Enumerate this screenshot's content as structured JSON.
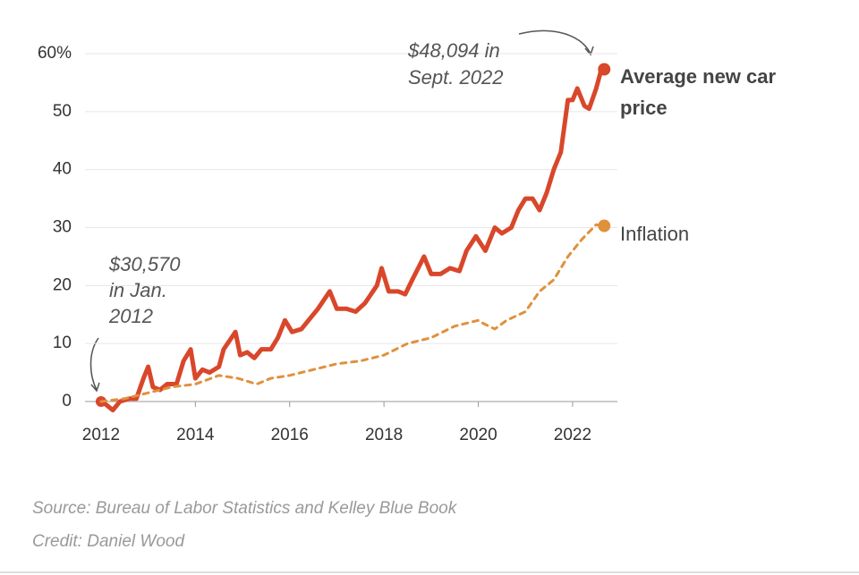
{
  "chart_data": {
    "type": "line",
    "xlim": [
      2011.66,
      2022.95
    ],
    "ylim": [
      0,
      60
    ],
    "xticks": [
      2012,
      2014,
      2016,
      2018,
      2020,
      2022
    ],
    "yticks": [
      0,
      10,
      20,
      30,
      40,
      50,
      {
        "value": 60,
        "label": "60%"
      }
    ],
    "grid": true,
    "series": [
      {
        "name": "Average new car price",
        "color": "#d9472b",
        "x": [
          2012.0,
          2012.1,
          2012.25,
          2012.4,
          2012.6,
          2012.75,
          2012.9,
          2013.0,
          2013.1,
          2013.25,
          2013.4,
          2013.6,
          2013.75,
          2013.9,
          2014.0,
          2014.15,
          2014.3,
          2014.5,
          2014.6,
          2014.85,
          2014.95,
          2015.1,
          2015.25,
          2015.4,
          2015.6,
          2015.75,
          2015.9,
          2016.05,
          2016.25,
          2016.4,
          2016.6,
          2016.85,
          2017.0,
          2017.2,
          2017.4,
          2017.6,
          2017.85,
          2017.95,
          2018.1,
          2018.3,
          2018.45,
          2018.6,
          2018.85,
          2019.0,
          2019.2,
          2019.4,
          2019.6,
          2019.75,
          2019.95,
          2020.15,
          2020.35,
          2020.5,
          2020.7,
          2020.85,
          2021.0,
          2021.15,
          2021.3,
          2021.45,
          2021.6,
          2021.75,
          2021.9,
          2022.0,
          2022.1,
          2022.25,
          2022.35,
          2022.5,
          2022.6,
          2022.67
        ],
        "values": [
          0,
          -0.5,
          -1.5,
          0,
          0.5,
          0.5,
          4,
          6,
          2.5,
          2,
          3,
          3,
          7,
          9,
          4,
          5.5,
          5,
          6,
          9,
          12,
          8,
          8.5,
          7.5,
          9,
          9,
          11,
          14,
          12,
          12.5,
          14,
          16,
          19,
          16,
          16,
          15.5,
          17,
          20,
          23,
          19,
          19,
          18.5,
          21,
          25,
          22,
          22,
          23,
          22.5,
          26,
          28.5,
          26,
          30,
          29,
          30,
          33,
          35,
          35,
          33,
          36,
          40,
          43,
          52,
          52,
          54,
          51,
          50.5,
          54,
          57,
          57.3
        ]
      },
      {
        "name": "Inflation",
        "color": "#e0913c",
        "x": [
          2012.0,
          2012.5,
          2013.0,
          2013.5,
          2014.0,
          2014.5,
          2014.9,
          2015.3,
          2015.6,
          2016.0,
          2016.5,
          2017.0,
          2017.5,
          2018.0,
          2018.5,
          2019.0,
          2019.5,
          2020.0,
          2020.1,
          2020.35,
          2020.6,
          2021.0,
          2021.3,
          2021.6,
          2021.9,
          2022.2,
          2022.5,
          2022.67
        ],
        "values": [
          0,
          0.5,
          1.5,
          2.5,
          3,
          4.5,
          4,
          3,
          4,
          4.5,
          5.5,
          6.5,
          7,
          8,
          10,
          11,
          13,
          14,
          13.5,
          12.5,
          14,
          15.5,
          19,
          21,
          25,
          28,
          30.5,
          30.3
        ]
      }
    ],
    "annotations": [
      {
        "lines": [
          "$48,094 in",
          "Sept. 2022"
        ]
      },
      {
        "lines": [
          "$30,570",
          "in Jan.",
          "2012"
        ]
      }
    ],
    "source": "Source: Bureau of Labor Statistics and Kelley Blue Book",
    "credit": "Credit: Daniel Wood"
  }
}
